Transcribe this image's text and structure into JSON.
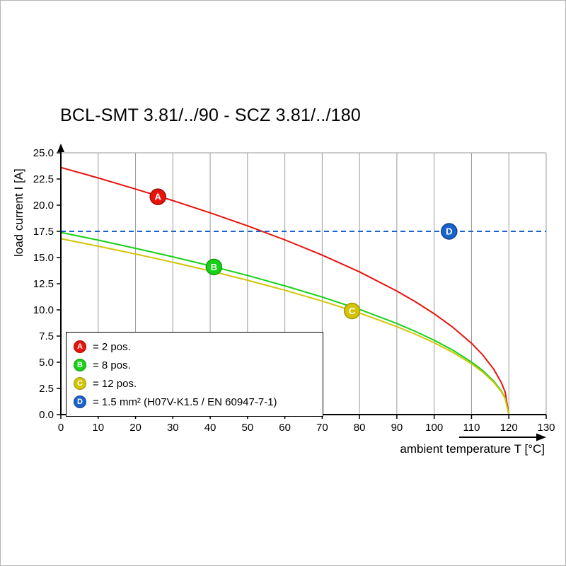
{
  "chart_data": {
    "type": "line",
    "title": "BCL-SMT 3.81/../90 - SCZ 3.81/../180",
    "xlabel": "ambient temperature T [°C]",
    "ylabel": "load current I [A]",
    "xlim": [
      0,
      130
    ],
    "ylim": [
      0,
      25
    ],
    "xticks": [
      0,
      10,
      20,
      30,
      40,
      50,
      60,
      70,
      80,
      90,
      100,
      110,
      120,
      130
    ],
    "xtick_labels": [
      "0",
      "10",
      "20",
      "30",
      "40",
      "50",
      "60",
      "70",
      "80",
      "90",
      "100",
      "110",
      "120",
      "130"
    ],
    "yticks": [
      0,
      2.5,
      5,
      7.5,
      10,
      12.5,
      15,
      17.5,
      20,
      22.5,
      25
    ],
    "ytick_labels": [
      "0.0",
      "2.5",
      "5.0",
      "7.5",
      "10.0",
      "12.5",
      "15.0",
      "17.5",
      "20.0",
      "22.5",
      "25.0"
    ],
    "grid": "vertical-only",
    "legend_position": "lower left",
    "series": [
      {
        "id": "A",
        "name": "2 pos.",
        "color": "#e8130c",
        "ring": "#a50b06",
        "style": "solid",
        "x": [
          0,
          10,
          20,
          30,
          40,
          50,
          60,
          70,
          80,
          90,
          95,
          100,
          105,
          110,
          113,
          116,
          118,
          119,
          120
        ],
        "y": [
          23.6,
          22.6,
          21.54,
          20.44,
          19.27,
          18.03,
          16.69,
          15.23,
          13.63,
          11.8,
          10.77,
          9.63,
          8.34,
          6.81,
          5.7,
          4.31,
          3.05,
          2.15,
          0
        ],
        "marker": {
          "x": 26,
          "y": 20.8
        }
      },
      {
        "id": "B",
        "name": "8 pos.",
        "color": "#17d117",
        "ring": "#0f9e0f",
        "style": "solid",
        "x": [
          0,
          10,
          20,
          30,
          40,
          50,
          60,
          70,
          80,
          90,
          95,
          100,
          105,
          110,
          113,
          116,
          118,
          119,
          120
        ],
        "y": [
          17.4,
          16.66,
          15.88,
          15.07,
          14.21,
          13.29,
          12.3,
          11.23,
          10.05,
          8.7,
          7.94,
          7.1,
          6.15,
          5.02,
          4.2,
          3.18,
          2.25,
          1.59,
          0
        ],
        "marker": {
          "x": 41,
          "y": 14.1
        }
      },
      {
        "id": "C",
        "name": "12 pos.",
        "color": "#d3c409",
        "ring": "#a39708",
        "style": "solid",
        "x": [
          0,
          10,
          20,
          30,
          40,
          50,
          60,
          70,
          80,
          90,
          95,
          100,
          105,
          110,
          113,
          116,
          118,
          119,
          120
        ],
        "y": [
          16.8,
          16.08,
          15.34,
          14.55,
          13.72,
          12.83,
          11.88,
          10.84,
          9.7,
          8.4,
          7.67,
          6.86,
          5.94,
          4.85,
          4.06,
          3.07,
          2.17,
          1.53,
          0
        ],
        "marker": {
          "x": 78,
          "y": 9.9
        }
      },
      {
        "id": "D",
        "name": "1.5 mm² (H07V-K1.5 / EN 60947-7-1)",
        "color": "#1a63c8",
        "ring": "#10418c",
        "style": "dashed",
        "x": [
          0,
          130
        ],
        "y": [
          17.5,
          17.5
        ],
        "marker": {
          "x": 104,
          "y": 17.5
        }
      }
    ],
    "legend": [
      {
        "id": "A",
        "color": "#e8130c",
        "ring": "#a50b06",
        "label": "= 2 pos."
      },
      {
        "id": "B",
        "color": "#17d117",
        "ring": "#0f9e0f",
        "label": "= 8 pos."
      },
      {
        "id": "C",
        "color": "#d3c409",
        "ring": "#a39708",
        "label": "= 12 pos."
      },
      {
        "id": "D",
        "color": "#1a63c8",
        "ring": "#10418c",
        "label": "= 1.5 mm² (H07V-K1.5 / EN 60947-7-1)"
      }
    ]
  }
}
